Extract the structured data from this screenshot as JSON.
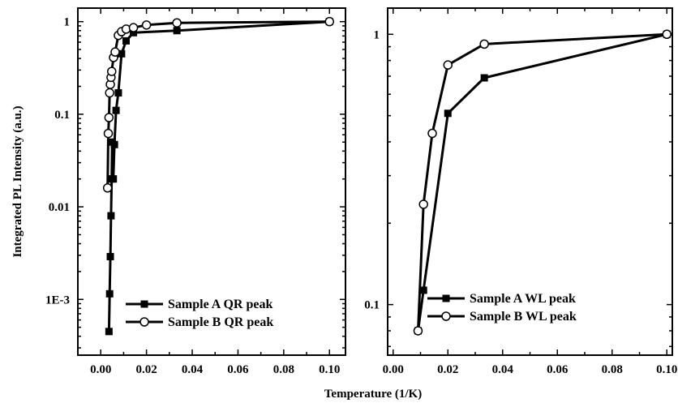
{
  "chart_data": [
    {
      "type": "line",
      "yscale": "log",
      "xlim": [
        -0.01,
        0.107
      ],
      "ylim": [
        0.00025,
        1.4
      ],
      "xticks": [
        0.0,
        0.02,
        0.04,
        0.06,
        0.08,
        0.1
      ],
      "xtick_labels": [
        "0.00",
        "0.02",
        "0.04",
        "0.06",
        "0.08",
        "0.10"
      ],
      "yticks": [
        0.001,
        0.01,
        0.1,
        1
      ],
      "ytick_labels": [
        "1E-3",
        "0.01",
        "0.1",
        "1"
      ],
      "ylabel": "Integrated PL Intensity (a.u.)",
      "legend_position": "bottom-right",
      "series": [
        {
          "name": "Sample A QR peak",
          "marker": "filled-square",
          "x": [
            0.0036,
            0.0039,
            0.0042,
            0.0045,
            0.0048,
            0.005,
            0.0055,
            0.006,
            0.0067,
            0.0077,
            0.0091,
            0.0111,
            0.0143,
            0.0333,
            0.1
          ],
          "y": [
            0.00045,
            0.00115,
            0.0029,
            0.008,
            0.02,
            0.05,
            0.02,
            0.047,
            0.11,
            0.17,
            0.45,
            0.62,
            0.76,
            0.8,
            1.0
          ]
        },
        {
          "name": "Sample B QR peak",
          "marker": "open-circle",
          "x": [
            0.003,
            0.0033,
            0.0036,
            0.0039,
            0.0042,
            0.0045,
            0.0048,
            0.0056,
            0.0063,
            0.0077,
            0.0091,
            0.0111,
            0.0143,
            0.02,
            0.0333,
            0.1
          ],
          "y": [
            0.016,
            0.062,
            0.092,
            0.17,
            0.21,
            0.25,
            0.29,
            0.41,
            0.47,
            0.71,
            0.78,
            0.83,
            0.86,
            0.92,
            0.97,
            1.0
          ]
        }
      ]
    },
    {
      "type": "line",
      "yscale": "log",
      "xlim": [
        -0.002,
        0.102
      ],
      "ylim": [
        0.065,
        1.25
      ],
      "xticks": [
        0.0,
        0.02,
        0.04,
        0.06,
        0.08,
        0.1
      ],
      "xtick_labels": [
        "0.00",
        "0.02",
        "0.04",
        "0.06",
        "0.08",
        "0.10"
      ],
      "yticks": [
        0.1,
        1
      ],
      "ytick_labels": [
        "0.1",
        "1"
      ],
      "legend_position": "bottom-right",
      "series": [
        {
          "name": "Sample A WL peak",
          "marker": "filled-square",
          "x": [
            0.0091,
            0.0111,
            0.02,
            0.0333,
            0.1
          ],
          "y": [
            0.08,
            0.113,
            0.51,
            0.69,
            1.0
          ]
        },
        {
          "name": "Sample B WL peak",
          "marker": "open-circle",
          "x": [
            0.0091,
            0.0111,
            0.0143,
            0.02,
            0.0333,
            0.1
          ],
          "y": [
            0.08,
            0.235,
            0.43,
            0.77,
            0.92,
            1.0
          ]
        }
      ]
    }
  ],
  "shared_xlabel": "Temperature (1/K)"
}
